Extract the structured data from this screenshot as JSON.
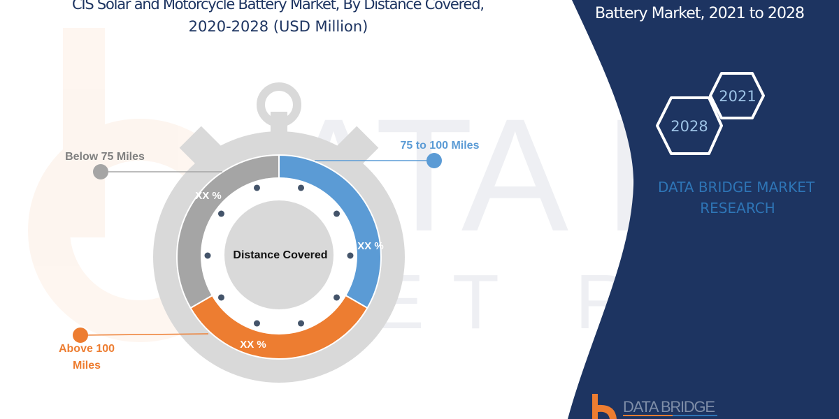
{
  "left_title": {
    "line1": "CIS Solar and Motorcycle Battery Market, By Distance Covered,",
    "line2": "2020-2028 (USD Million)"
  },
  "right_panel": {
    "title_line": "Battery Market, 2021 to 2028",
    "hex_years": [
      "2021",
      "2028"
    ],
    "brand_text_line1": "DATA BRIDGE MARKET",
    "brand_text_line2": "RESEARCH",
    "logo_text": "DATA BRIDGE",
    "background_color": "#1d3461"
  },
  "watermark_icon": "data-bridge-logo-watermark",
  "chart_data": {
    "type": "pie",
    "variant": "donut-stopwatch",
    "center_label": "Distance Covered",
    "categories": [
      "75 to 100 Miles",
      "Above 100 Miles",
      "Below 75 Miles"
    ],
    "value_labels": [
      "XX %",
      "XX %",
      "XX %"
    ],
    "colors": [
      "#5b9bd5",
      "#ed7d31",
      "#a5a5a5"
    ],
    "legend": "callouts"
  }
}
